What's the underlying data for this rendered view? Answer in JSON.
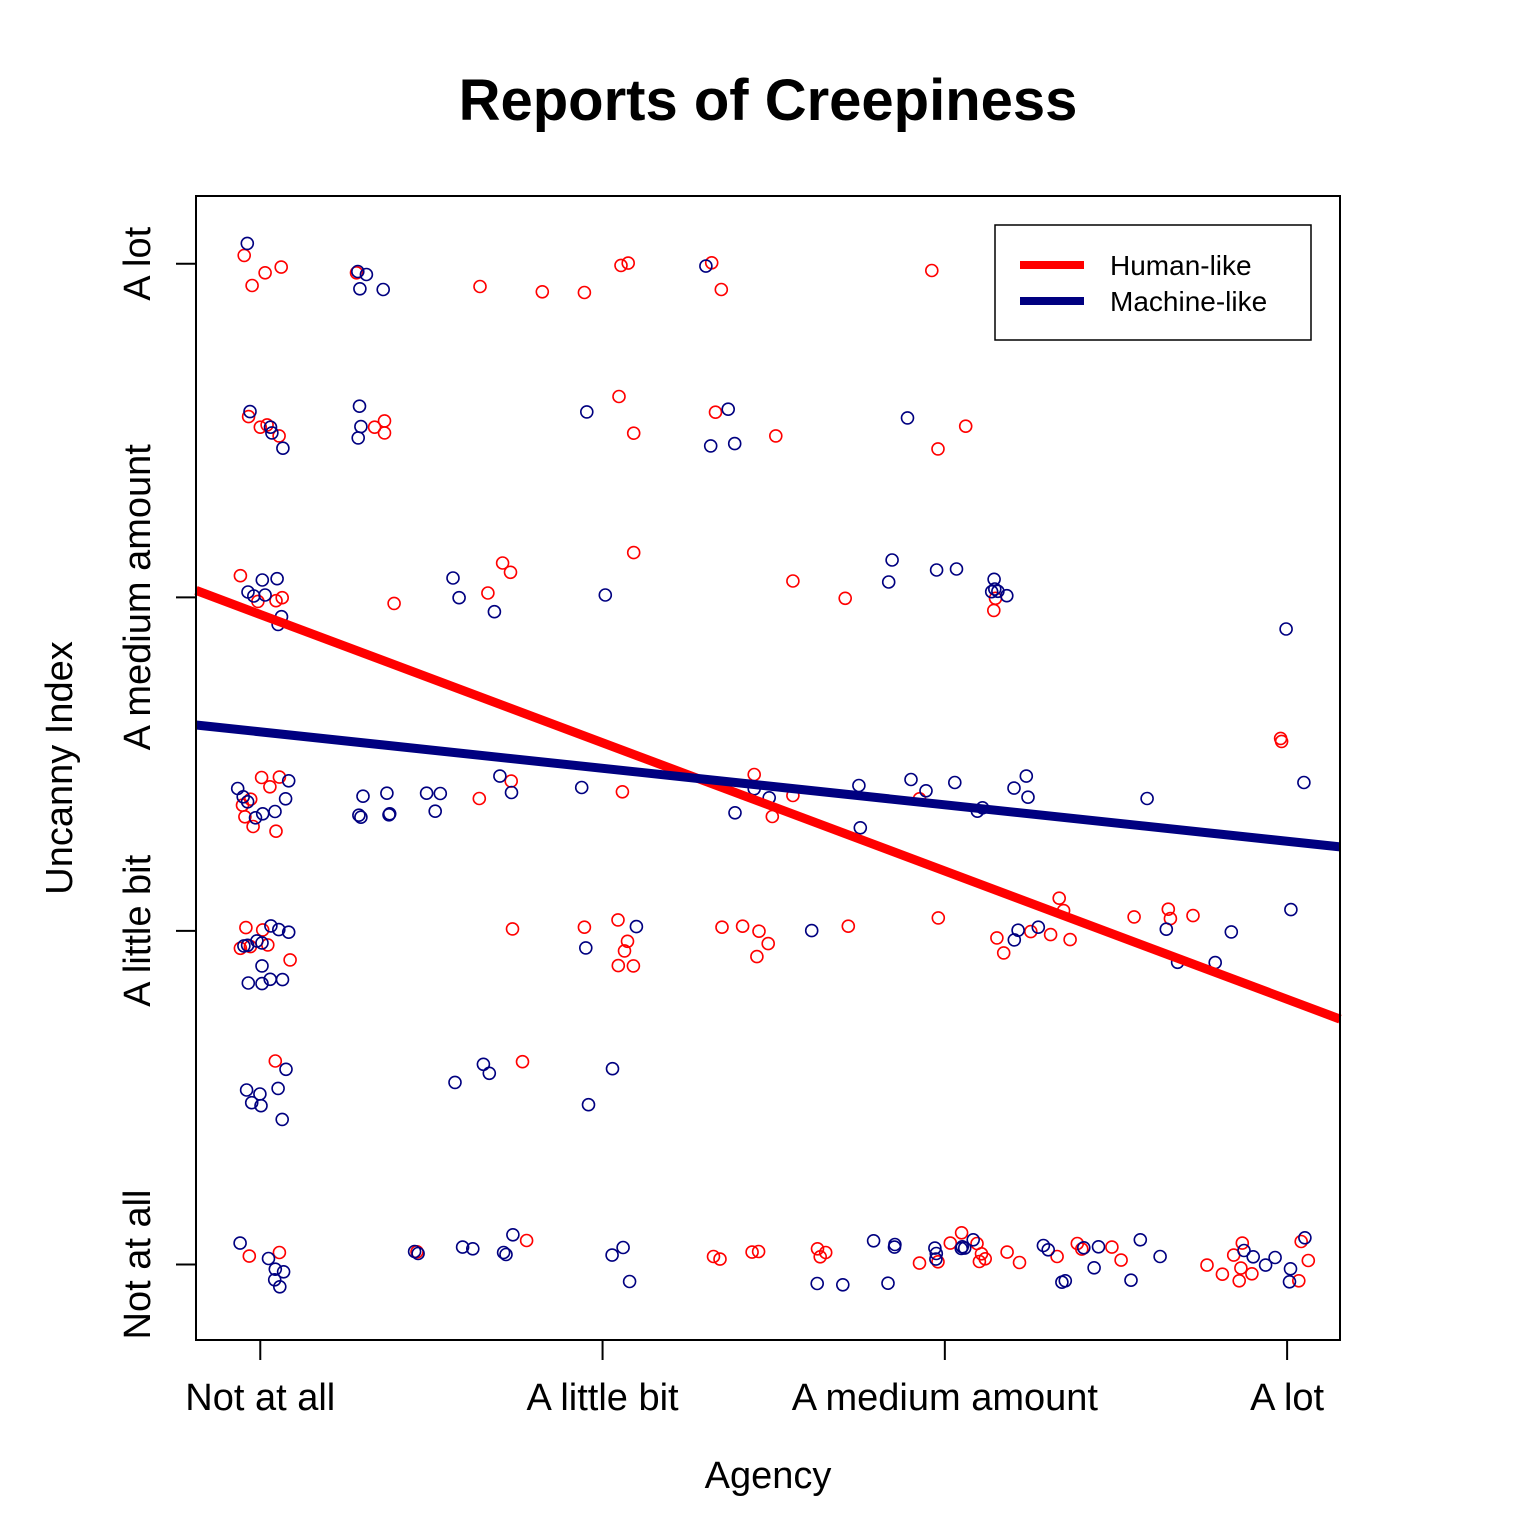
{
  "chart_data": {
    "type": "scatter",
    "title": "Reports of Creepiness",
    "xlabel": "Agency",
    "ylabel": "Uncanny Index",
    "xlim": [
      0.8122,
      4.1545
    ],
    "ylim": [
      0.7736,
      4.2032
    ],
    "x_ticks": [
      {
        "value": 1,
        "label": "Not at all"
      },
      {
        "value": 2,
        "label": "A little bit"
      },
      {
        "value": 3,
        "label": "A medium amount"
      },
      {
        "value": 4,
        "label": "A lot"
      }
    ],
    "y_ticks": [
      {
        "value": 1,
        "label": "Not at all"
      },
      {
        "value": 2,
        "label": "A little bit"
      },
      {
        "value": 3,
        "label": "A medium amount"
      },
      {
        "value": 4,
        "label": "A lot"
      }
    ],
    "legend": {
      "position": "top-right",
      "entries": [
        {
          "label": "Human-like",
          "color": "#ff0000"
        },
        {
          "label": "Machine-like",
          "color": "#000080"
        }
      ]
    },
    "series": [
      {
        "name": "Human-like",
        "color": "#ff0000",
        "points": [
          [
            0.953,
            4.025
          ],
          [
            0.976,
            3.935
          ],
          [
            1.014,
            3.973
          ],
          [
            1.061,
            3.99
          ],
          [
            1.087,
            1.913
          ],
          [
            0.966,
            3.542
          ],
          [
            1.0,
            3.51
          ],
          [
            1.02,
            3.517
          ],
          [
            1.055,
            3.484
          ],
          [
            0.942,
            3.065
          ],
          [
            0.993,
            2.988
          ],
          [
            1.046,
            2.99
          ],
          [
            1.064,
            2.999
          ],
          [
            0.948,
            2.377
          ],
          [
            0.972,
            2.395
          ],
          [
            1.004,
            2.46
          ],
          [
            1.028,
            2.432
          ],
          [
            1.056,
            2.461
          ],
          [
            0.955,
            2.342
          ],
          [
            0.979,
            2.313
          ],
          [
            1.046,
            2.299
          ],
          [
            0.942,
            1.948
          ],
          [
            0.971,
            1.953
          ],
          [
            1.022,
            1.958
          ],
          [
            0.958,
            2.01
          ],
          [
            1.007,
            2.003
          ],
          [
            1.044,
            1.61
          ],
          [
            0.968,
            1.025
          ],
          [
            1.056,
            1.036
          ],
          [
            1.281,
            3.973
          ],
          [
            1.334,
            3.51
          ],
          [
            1.363,
            3.529
          ],
          [
            1.363,
            3.493
          ],
          [
            1.391,
            2.982
          ],
          [
            1.458,
            1.038
          ],
          [
            1.64,
            2.397
          ],
          [
            1.642,
            3.932
          ],
          [
            1.665,
            3.013
          ],
          [
            1.708,
            3.103
          ],
          [
            1.731,
            3.075
          ],
          [
            1.733,
            2.449
          ],
          [
            1.737,
            2.006
          ],
          [
            1.766,
            1.608
          ],
          [
            1.778,
            1.072
          ],
          [
            1.824,
            3.916
          ],
          [
            1.947,
            3.914
          ],
          [
            1.947,
            2.011
          ],
          [
            2.048,
            3.602
          ],
          [
            2.073,
            1.969
          ],
          [
            2.054,
            3.995
          ],
          [
            2.075,
            4.002
          ],
          [
            2.064,
            1.94
          ],
          [
            2.09,
            1.895
          ],
          [
            2.046,
            1.896
          ],
          [
            2.045,
            2.033
          ],
          [
            2.058,
            2.417
          ],
          [
            2.091,
            3.492
          ],
          [
            2.091,
            3.134
          ],
          [
            2.319,
            4.003
          ],
          [
            2.33,
            3.555
          ],
          [
            2.347,
            3.923
          ],
          [
            2.456,
            1.039
          ],
          [
            2.437,
            1.037
          ],
          [
            2.343,
            1.016
          ],
          [
            2.324,
            1.024
          ],
          [
            2.349,
            2.011
          ],
          [
            2.409,
            2.014
          ],
          [
            2.496,
            2.343
          ],
          [
            2.443,
            2.469
          ],
          [
            2.451,
            1.923
          ],
          [
            2.457,
            1.999
          ],
          [
            2.484,
            1.962
          ],
          [
            2.506,
            3.484
          ],
          [
            2.556,
            3.049
          ],
          [
            2.556,
            2.406
          ],
          [
            2.628,
            1.047
          ],
          [
            2.636,
            1.023
          ],
          [
            2.652,
            1.036
          ],
          [
            2.709,
            2.997
          ],
          [
            2.718,
            2.014
          ],
          [
            2.926,
            2.396
          ],
          [
            2.926,
            1.004
          ],
          [
            2.962,
            3.98
          ],
          [
            2.98,
            3.445
          ],
          [
            2.98,
            1.008
          ],
          [
            2.981,
            2.039
          ],
          [
            3.016,
            1.064
          ],
          [
            3.049,
            1.095
          ],
          [
            3.061,
            3.513
          ],
          [
            3.094,
            1.063
          ],
          [
            3.101,
            1.009
          ],
          [
            3.107,
            1.032
          ],
          [
            3.118,
            1.017
          ],
          [
            3.143,
            2.961
          ],
          [
            3.148,
            2.997
          ],
          [
            3.152,
            1.979
          ],
          [
            3.172,
            1.934
          ],
          [
            3.182,
            1.037
          ],
          [
            3.218,
            1.006
          ],
          [
            3.251,
            1.998
          ],
          [
            3.309,
            1.989
          ],
          [
            3.328,
            1.024
          ],
          [
            3.334,
            2.098
          ],
          [
            3.347,
            2.061
          ],
          [
            3.366,
            1.974
          ],
          [
            3.387,
            1.063
          ],
          [
            3.4,
            1.046
          ],
          [
            3.488,
            1.052
          ],
          [
            3.515,
            1.013
          ],
          [
            3.553,
            2.042
          ],
          [
            3.653,
            2.065
          ],
          [
            3.659,
            2.037
          ],
          [
            3.725,
            2.046
          ],
          [
            3.766,
            0.998
          ],
          [
            3.811,
            0.971
          ],
          [
            3.844,
            1.028
          ],
          [
            3.869,
            1.064
          ],
          [
            3.86,
            0.951
          ],
          [
            3.865,
            0.989
          ],
          [
            3.897,
            0.972
          ],
          [
            3.984,
            2.568
          ],
          [
            3.981,
            2.577
          ],
          [
            4.034,
            0.951
          ],
          [
            4.041,
            1.069
          ],
          [
            4.062,
            1.012
          ]
        ]
      },
      {
        "name": "Machine-like",
        "color": "#000080",
        "points": [
          [
            0.962,
            4.061
          ],
          [
            1.285,
            3.977
          ],
          [
            1.291,
            3.925
          ],
          [
            1.29,
            3.573
          ],
          [
            1.294,
            3.512
          ],
          [
            1.286,
            3.478
          ],
          [
            0.97,
            3.557
          ],
          [
            1.03,
            3.51
          ],
          [
            1.034,
            3.493
          ],
          [
            1.066,
            3.447
          ],
          [
            0.964,
            3.016
          ],
          [
            0.981,
            3.004
          ],
          [
            1.006,
            3.052
          ],
          [
            1.014,
            3.007
          ],
          [
            1.049,
            3.056
          ],
          [
            1.062,
            2.942
          ],
          [
            1.052,
            2.919
          ],
          [
            0.934,
            2.427
          ],
          [
            0.95,
            2.402
          ],
          [
            1.3,
            2.404
          ],
          [
            1.288,
            2.347
          ],
          [
            1.294,
            2.341
          ],
          [
            1.083,
            2.45
          ],
          [
            0.963,
            2.387
          ],
          [
            0.986,
            2.339
          ],
          [
            1.007,
            2.351
          ],
          [
            1.043,
            2.358
          ],
          [
            1.074,
            2.396
          ],
          [
            0.952,
            1.955
          ],
          [
            0.963,
            1.957
          ],
          [
            0.99,
            1.97
          ],
          [
            1.005,
            1.964
          ],
          [
            1.031,
            2.015
          ],
          [
            1.054,
            2.004
          ],
          [
            1.083,
            1.996
          ],
          [
            1.005,
            1.895
          ],
          [
            0.965,
            1.844
          ],
          [
            1.005,
            1.842
          ],
          [
            1.029,
            1.855
          ],
          [
            1.065,
            1.854
          ],
          [
            0.999,
            1.511
          ],
          [
            1.052,
            1.528
          ],
          [
            1.075,
            1.585
          ],
          [
            0.96,
            1.523
          ],
          [
            0.975,
            1.485
          ],
          [
            1.002,
            1.476
          ],
          [
            1.064,
            1.435
          ],
          [
            0.941,
            1.064
          ],
          [
            1.024,
            1.018
          ],
          [
            1.044,
            0.986
          ],
          [
            1.042,
            0.954
          ],
          [
            1.057,
            0.933
          ],
          [
            1.068,
            0.978
          ],
          [
            1.31,
            3.968
          ],
          [
            1.359,
            3.923
          ],
          [
            1.37,
            2.413
          ],
          [
            1.376,
            2.348
          ],
          [
            1.378,
            2.351
          ],
          [
            1.451,
            1.039
          ],
          [
            1.461,
            1.033
          ],
          [
            1.486,
            2.413
          ],
          [
            1.511,
            2.359
          ],
          [
            1.526,
            2.412
          ],
          [
            1.581,
            2.999
          ],
          [
            1.563,
            3.058
          ],
          [
            1.569,
            1.546
          ],
          [
            1.591,
            1.052
          ],
          [
            1.621,
            1.047
          ],
          [
            1.652,
            1.6
          ],
          [
            1.669,
            1.573
          ],
          [
            1.684,
            2.957
          ],
          [
            1.7,
            2.464
          ],
          [
            1.734,
            2.415
          ],
          [
            1.711,
            1.036
          ],
          [
            1.718,
            1.03
          ],
          [
            1.738,
            1.089
          ],
          [
            1.939,
            2.43
          ],
          [
            1.954,
            3.556
          ],
          [
            1.951,
            1.949
          ],
          [
            1.959,
            1.479
          ],
          [
            2.008,
            3.007
          ],
          [
            2.029,
            1.587
          ],
          [
            2.028,
            1.028
          ],
          [
            2.06,
            1.051
          ],
          [
            2.079,
            0.949
          ],
          [
            2.099,
            2.013
          ],
          [
            2.302,
            3.993
          ],
          [
            2.316,
            3.454
          ],
          [
            2.367,
            3.564
          ],
          [
            2.386,
            3.461
          ],
          [
            2.387,
            2.354
          ],
          [
            2.443,
            2.426
          ],
          [
            2.487,
            2.399
          ],
          [
            2.611,
            2.001
          ],
          [
            2.627,
            0.943
          ],
          [
            2.702,
            0.939
          ],
          [
            2.749,
            2.436
          ],
          [
            2.753,
            2.309
          ],
          [
            2.792,
            1.071
          ],
          [
            2.834,
            0.944
          ],
          [
            2.853,
            1.052
          ],
          [
            2.836,
            3.046
          ],
          [
            2.846,
            3.112
          ],
          [
            2.854,
            1.06
          ],
          [
            2.891,
            3.538
          ],
          [
            2.901,
            2.454
          ],
          [
            2.945,
            2.42
          ],
          [
            2.976,
            3.082
          ],
          [
            2.974,
            1.016
          ],
          [
            2.975,
            1.033
          ],
          [
            2.971,
            1.049
          ],
          [
            3.029,
            2.445
          ],
          [
            3.034,
            3.085
          ],
          [
            3.048,
            1.048
          ],
          [
            3.051,
            1.053
          ],
          [
            3.058,
            1.049
          ],
          [
            3.083,
            1.074
          ],
          [
            3.095,
            2.359
          ],
          [
            3.11,
            2.369
          ],
          [
            3.137,
            3.017
          ],
          [
            3.144,
            3.054
          ],
          [
            3.146,
            3.025
          ],
          [
            3.155,
            3.018
          ],
          [
            3.181,
            3.005
          ],
          [
            3.202,
            2.428
          ],
          [
            3.203,
            1.973
          ],
          [
            3.214,
            2.002
          ],
          [
            3.238,
            2.464
          ],
          [
            3.243,
            2.401
          ],
          [
            3.273,
            2.011
          ],
          [
            3.288,
            1.057
          ],
          [
            3.302,
            1.044
          ],
          [
            3.342,
            0.947
          ],
          [
            3.352,
            0.951
          ],
          [
            3.406,
            1.05
          ],
          [
            3.436,
            0.99
          ],
          [
            3.449,
            1.053
          ],
          [
            3.544,
            0.953
          ],
          [
            3.571,
            1.074
          ],
          [
            3.591,
            2.397
          ],
          [
            3.629,
            1.024
          ],
          [
            3.647,
            2.005
          ],
          [
            3.68,
            1.906
          ],
          [
            3.79,
            1.905
          ],
          [
            3.837,
            1.997
          ],
          [
            3.874,
            1.042
          ],
          [
            3.901,
            1.023
          ],
          [
            3.937,
            0.998
          ],
          [
            3.965,
            1.021
          ],
          [
            4.011,
            2.064
          ],
          [
            4.049,
            2.445
          ],
          [
            4.052,
            1.08
          ],
          [
            4.007,
            0.948
          ],
          [
            3.997,
            2.905
          ],
          [
            4.01,
            0.987
          ]
        ]
      }
    ],
    "fit_lines": [
      {
        "name": "Human-like",
        "color": "#ff0000",
        "intercept": 3.333,
        "slope": -0.3845
      },
      {
        "name": "Machine-like",
        "color": "#000080",
        "intercept": 2.706,
        "slope": -0.1093
      }
    ]
  }
}
